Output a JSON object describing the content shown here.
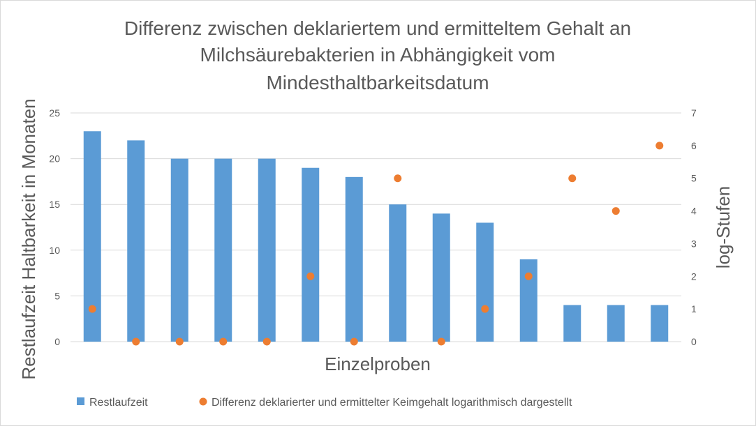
{
  "chart_data": {
    "type": "bar",
    "title_lines": [
      "Differenz zwischen deklariertem und ermitteltem Gehalt an",
      "Milchsäurebakterien in Abhängigkeit vom",
      "Mindesthaltbarkeitsdatum"
    ],
    "xlabel": "Einzelproben",
    "ylabel": "Restlaufzeit Haltbarkeit in Monaten",
    "y2label": "log-Stufen",
    "ylim": [
      0,
      25
    ],
    "yticks": [
      0,
      5,
      10,
      15,
      20,
      25
    ],
    "y2lim": [
      0,
      7
    ],
    "y2ticks": [
      0,
      1,
      2,
      3,
      4,
      5,
      6,
      7
    ],
    "grid": true,
    "legend_position": "bottom",
    "series": [
      {
        "name": "Restlaufzeit",
        "type": "bar",
        "axis": "left",
        "color": "#5b9bd5",
        "values": [
          23,
          22,
          20,
          20,
          20,
          19,
          18,
          15,
          14,
          13,
          9,
          4,
          4,
          4
        ]
      },
      {
        "name": "Differenz deklarierter und ermittelter Keimgehalt logarithmisch dargestellt",
        "type": "scatter",
        "axis": "right",
        "color": "#ed7d31",
        "values": [
          1,
          0,
          0,
          0,
          0,
          2,
          0,
          5,
          0,
          1,
          2,
          5,
          4,
          6
        ]
      }
    ]
  }
}
